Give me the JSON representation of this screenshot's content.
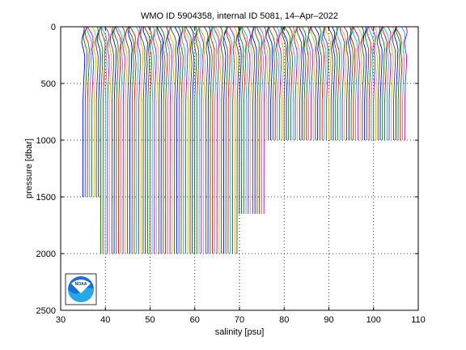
{
  "chart_data": {
    "type": "line",
    "title": "WMO ID 5904358, internal ID 5081, 14–Apr–2022",
    "xlabel": "salinity [psu]",
    "ylabel": "pressure [dbar]",
    "xlim": [
      30,
      110
    ],
    "ylim": [
      0,
      2500
    ],
    "y_reversed": true,
    "x_ticks": [
      30,
      40,
      50,
      60,
      70,
      80,
      90,
      100,
      110
    ],
    "y_ticks": [
      0,
      500,
      1000,
      1500,
      2000,
      2500
    ],
    "grid": true,
    "grid_style": "dotted",
    "profile_offset_psu": 0.5,
    "profile_count": 145,
    "first_profile_salinity_psu": 35.0,
    "profile_colors": [
      "#0000ff",
      "#008000",
      "#ff0000",
      "#00bfbf",
      "#bf00bf",
      "#bfbf00",
      "#404040"
    ],
    "profile_depth_groups": [
      {
        "profiles": "1-8",
        "max_pressure_dbar": 1500
      },
      {
        "profiles": "9-70",
        "max_pressure_dbar": 2000
      },
      {
        "profiles": "71-82",
        "max_pressure_dbar": 1650
      },
      {
        "profiles": "83-145",
        "max_pressure_dbar": 1000
      }
    ]
  },
  "logo": {
    "text": "NOAA",
    "name": "noaa-logo"
  }
}
